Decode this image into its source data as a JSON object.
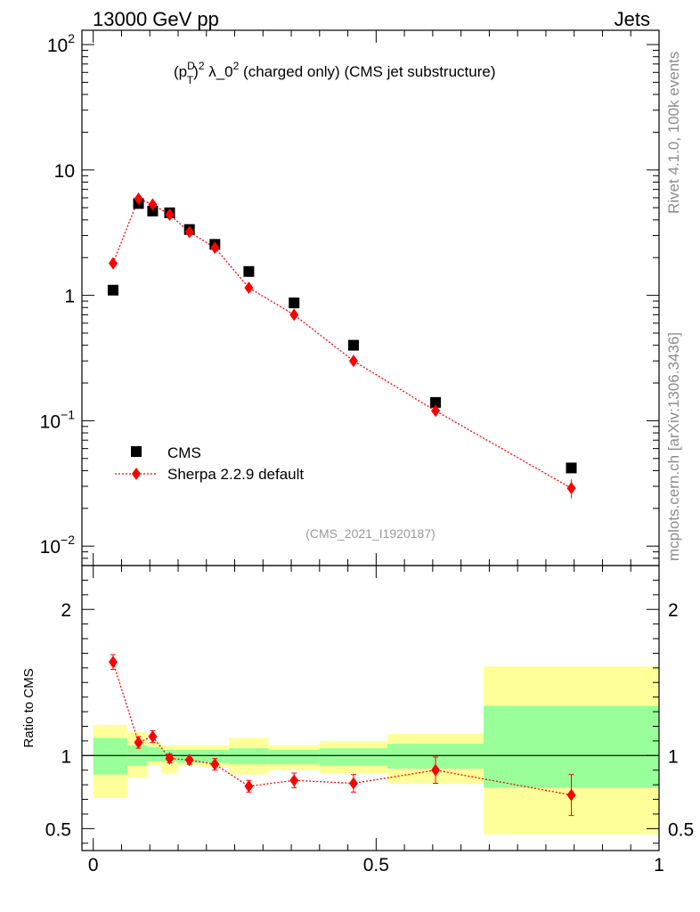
{
  "header": {
    "left": "13000 GeV pp",
    "right": "Jets"
  },
  "sidebar": {
    "rivet": "Rivet 4.1.0,  100k events",
    "mcplots": "mcplots.cern.ch [arXiv:1306.3436]"
  },
  "chart_data": [
    {
      "type": "scatter",
      "panel": "main",
      "title_parts": {
        "p": "(p",
        "sup1": "D",
        "sub1": "T",
        "close": ")",
        "sup2": "2",
        "lambda": " λ_0",
        "sup3": "2",
        "rest": " (charged only) (CMS jet substructure)"
      },
      "analysis_id": "(CMS_2021_I1920187)",
      "yscale": "log",
      "ylim": [
        0.007,
        130
      ],
      "xlim": [
        -0.02,
        1.0
      ],
      "yticks": [
        {
          "value": 100,
          "base": "10",
          "exp": "2"
        },
        {
          "value": 10,
          "base": "10",
          "exp": ""
        },
        {
          "value": 1,
          "base": "1",
          "exp": ""
        },
        {
          "value": 0.1,
          "base": "10",
          "exp": "−1"
        },
        {
          "value": 0.01,
          "base": "10",
          "exp": "−2"
        }
      ],
      "legend": [
        {
          "label": "CMS",
          "marker": "square",
          "color": "#000000"
        },
        {
          "label": "Sherpa 2.2.9 default",
          "marker": "diamond",
          "color": "#ff0000"
        }
      ],
      "series": [
        {
          "name": "CMS",
          "x": [
            0.035,
            0.08,
            0.105,
            0.135,
            0.17,
            0.215,
            0.275,
            0.355,
            0.46,
            0.605,
            0.845
          ],
          "y": [
            1.1,
            5.4,
            4.7,
            4.55,
            3.35,
            2.55,
            1.55,
            0.87,
            0.4,
            0.14,
            0.042
          ]
        },
        {
          "name": "Sherpa 2.2.9 default",
          "x": [
            0.035,
            0.08,
            0.105,
            0.135,
            0.17,
            0.215,
            0.275,
            0.355,
            0.46,
            0.605,
            0.845
          ],
          "y": [
            1.8,
            5.9,
            5.3,
            4.4,
            3.2,
            2.4,
            1.15,
            0.7,
            0.3,
            0.12,
            0.029
          ],
          "yerr": [
            0.1,
            0.2,
            0.2,
            0.15,
            0.12,
            0.1,
            0.06,
            0.04,
            0.02,
            0.012,
            0.005
          ]
        }
      ]
    },
    {
      "type": "scatter",
      "panel": "ratio",
      "ylabel": "Ratio to CMS",
      "ylim": [
        0.35,
        2.3
      ],
      "xlim": [
        -0.02,
        1.0
      ],
      "yticks": [
        {
          "value": 2,
          "label": "2"
        },
        {
          "value": 1,
          "label": "1"
        },
        {
          "value": 0.5,
          "label": "0.5"
        }
      ],
      "xticks": [
        {
          "value": 0,
          "label": "0"
        },
        {
          "value": 0.5,
          "label": "0.5"
        },
        {
          "value": 1,
          "label": "1"
        }
      ],
      "bands": [
        {
          "x0": 0.0,
          "x1": 0.06,
          "stat": [
            0.87,
            1.12
          ],
          "total": [
            0.71,
            1.21
          ]
        },
        {
          "x0": 0.06,
          "x1": 0.095,
          "stat": [
            0.93,
            1.07
          ],
          "total": [
            0.85,
            1.16
          ]
        },
        {
          "x0": 0.095,
          "x1": 0.12,
          "stat": [
            0.96,
            1.06
          ],
          "total": [
            0.93,
            1.09
          ]
        },
        {
          "x0": 0.12,
          "x1": 0.15,
          "stat": [
            0.96,
            1.04
          ],
          "total": [
            0.88,
            1.07
          ]
        },
        {
          "x0": 0.15,
          "x1": 0.19,
          "stat": [
            0.95,
            1.04
          ],
          "total": [
            0.93,
            1.07
          ]
        },
        {
          "x0": 0.19,
          "x1": 0.24,
          "stat": [
            0.95,
            1.04
          ],
          "total": [
            0.92,
            1.07
          ]
        },
        {
          "x0": 0.24,
          "x1": 0.31,
          "stat": [
            0.94,
            1.05
          ],
          "total": [
            0.87,
            1.12
          ]
        },
        {
          "x0": 0.31,
          "x1": 0.4,
          "stat": [
            0.94,
            1.04
          ],
          "total": [
            0.9,
            1.07
          ]
        },
        {
          "x0": 0.4,
          "x1": 0.52,
          "stat": [
            0.93,
            1.05
          ],
          "total": [
            0.88,
            1.1
          ]
        },
        {
          "x0": 0.52,
          "x1": 0.69,
          "stat": [
            0.91,
            1.08
          ],
          "total": [
            0.81,
            1.15
          ]
        },
        {
          "x0": 0.69,
          "x1": 1.0,
          "stat": [
            0.78,
            1.34
          ],
          "total": [
            0.46,
            1.61
          ]
        }
      ],
      "series": [
        {
          "name": "Sherpa 2.2.9 default",
          "x": [
            0.035,
            0.08,
            0.105,
            0.135,
            0.17,
            0.215,
            0.275,
            0.355,
            0.46,
            0.605,
            0.845
          ],
          "y": [
            1.64,
            1.09,
            1.13,
            0.98,
            0.97,
            0.94,
            0.79,
            0.83,
            0.81,
            0.9,
            0.73
          ],
          "yerr": [
            0.05,
            0.04,
            0.04,
            0.03,
            0.03,
            0.04,
            0.04,
            0.05,
            0.06,
            0.09,
            0.14
          ]
        }
      ]
    }
  ]
}
